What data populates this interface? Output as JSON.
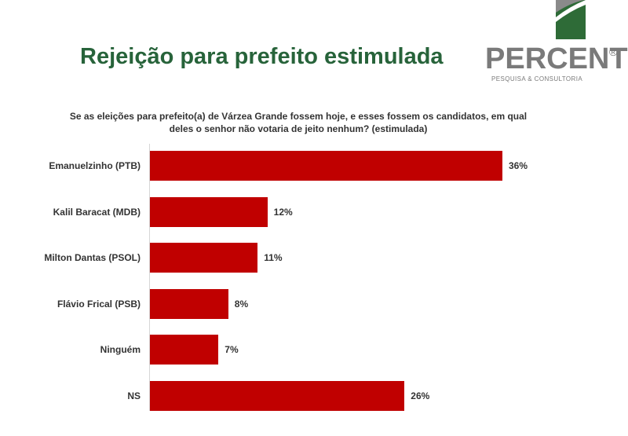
{
  "header": {
    "title": "Rejeição para prefeito estimulada"
  },
  "logo": {
    "wordmark": "PERCENT",
    "registered": "®",
    "tagline": "PESQUISA & CONSULTORIA",
    "colors": {
      "green": "#2e6b37",
      "gray": "#7a7a7a"
    }
  },
  "chart_data": {
    "type": "bar",
    "orientation": "horizontal",
    "title": "Se as eleições para prefeito(a) de Várzea Grande fossem hoje, e esses fossem os candidatos, em qual deles o senhor não votaria de jeito nenhum? (estimulada)",
    "categories": [
      "Emanuelzinho (PTB)",
      "Kalil Baracat (MDB)",
      "Milton Dantas (PSOL)",
      "Flávio Frical (PSB)",
      "Ninguém",
      "NS"
    ],
    "values": [
      36,
      12,
      11,
      8,
      7,
      26
    ],
    "value_labels": [
      "36%",
      "12%",
      "11%",
      "8%",
      "7%",
      "26%"
    ],
    "unit": "%",
    "xlim": [
      0,
      40
    ],
    "grid": false,
    "legend": "none",
    "bar_color": "#c00000"
  }
}
